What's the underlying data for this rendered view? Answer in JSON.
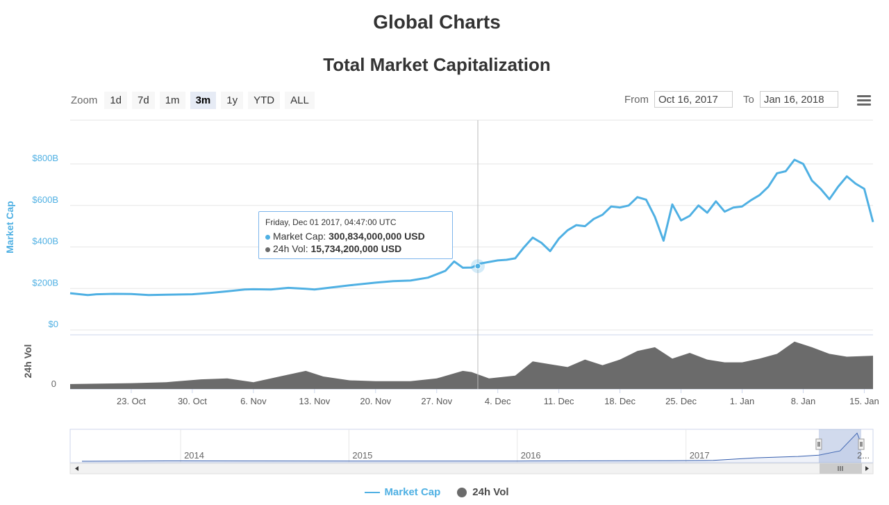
{
  "page": {
    "title": "Global Charts"
  },
  "toolbar": {
    "zoom_label": "Zoom",
    "zoom_buttons": [
      "1d",
      "7d",
      "1m",
      "3m",
      "1y",
      "YTD",
      "ALL"
    ],
    "active_zoom": "3m",
    "from_label": "From",
    "from_value": "Oct 16, 2017",
    "to_label": "To",
    "to_value": "Jan 16, 2018",
    "menu_icon": "hamburger-menu-icon"
  },
  "tooltip": {
    "date": "Friday, Dec 01 2017, 04:47:00 UTC",
    "market_cap_label": "Market Cap:",
    "market_cap_value": "300,834,000,000 USD",
    "vol_label": "24h Vol:",
    "vol_value": "15,734,200,000 USD"
  },
  "colors": {
    "market_cap": "#4fb0e3",
    "volume": "#6b6b6b",
    "navigator": "#335cad",
    "text": "#333333"
  },
  "chart_data": {
    "type": "line",
    "title": "Total Market Capitalization",
    "xlabel": "",
    "ylabel": "Market Cap",
    "ylim": [
      0,
      1000
    ],
    "y_ticks": [
      0,
      200,
      400,
      600,
      800
    ],
    "y_tick_labels": [
      "$0",
      "$200B",
      "$400B",
      "$600B",
      "$800B"
    ],
    "x_range": [
      "2017-10-16",
      "2018-01-16"
    ],
    "x_ticks": [
      {
        "date": "2017-10-23",
        "label": "23. Oct"
      },
      {
        "date": "2017-10-30",
        "label": "30. Oct"
      },
      {
        "date": "2017-11-06",
        "label": "6. Nov"
      },
      {
        "date": "2017-11-13",
        "label": "13. Nov"
      },
      {
        "date": "2017-11-20",
        "label": "20. Nov"
      },
      {
        "date": "2017-11-27",
        "label": "27. Nov"
      },
      {
        "date": "2017-12-04",
        "label": "4. Dec"
      },
      {
        "date": "2017-12-11",
        "label": "11. Dec"
      },
      {
        "date": "2017-12-18",
        "label": "18. Dec"
      },
      {
        "date": "2017-12-25",
        "label": "25. Dec"
      },
      {
        "date": "2018-01-01",
        "label": "1. Jan"
      },
      {
        "date": "2018-01-08",
        "label": "8. Jan"
      },
      {
        "date": "2018-01-15",
        "label": "15. Jan"
      }
    ],
    "crosshair_date": "2017-12-01",
    "series": [
      {
        "name": "Market Cap",
        "unit": "B USD",
        "points": [
          [
            "2017-10-16",
            177
          ],
          [
            "2017-10-18",
            168
          ],
          [
            "2017-10-19",
            172
          ],
          [
            "2017-10-21",
            174
          ],
          [
            "2017-10-23",
            173
          ],
          [
            "2017-10-25",
            168
          ],
          [
            "2017-10-27",
            170
          ],
          [
            "2017-10-30",
            172
          ],
          [
            "2017-11-01",
            178
          ],
          [
            "2017-11-03",
            186
          ],
          [
            "2017-11-05",
            195
          ],
          [
            "2017-11-06",
            196
          ],
          [
            "2017-11-08",
            195
          ],
          [
            "2017-11-10",
            203
          ],
          [
            "2017-11-12",
            198
          ],
          [
            "2017-11-13",
            195
          ],
          [
            "2017-11-15",
            205
          ],
          [
            "2017-11-17",
            215
          ],
          [
            "2017-11-20",
            228
          ],
          [
            "2017-11-22",
            235
          ],
          [
            "2017-11-24",
            238
          ],
          [
            "2017-11-26",
            252
          ],
          [
            "2017-11-28",
            285
          ],
          [
            "2017-11-29",
            330
          ],
          [
            "2017-11-30",
            300
          ],
          [
            "2017-12-01",
            301
          ],
          [
            "2017-12-02",
            320
          ],
          [
            "2017-12-04",
            335
          ],
          [
            "2017-12-05",
            338
          ],
          [
            "2017-12-06",
            345
          ],
          [
            "2017-12-07",
            398
          ],
          [
            "2017-12-08",
            445
          ],
          [
            "2017-12-09",
            420
          ],
          [
            "2017-12-10",
            380
          ],
          [
            "2017-12-11",
            440
          ],
          [
            "2017-12-12",
            480
          ],
          [
            "2017-12-13",
            505
          ],
          [
            "2017-12-14",
            500
          ],
          [
            "2017-12-15",
            535
          ],
          [
            "2017-12-16",
            555
          ],
          [
            "2017-12-17",
            595
          ],
          [
            "2017-12-18",
            590
          ],
          [
            "2017-12-19",
            600
          ],
          [
            "2017-12-20",
            640
          ],
          [
            "2017-12-21",
            628
          ],
          [
            "2017-12-22",
            545
          ],
          [
            "2017-12-23",
            430
          ],
          [
            "2017-12-24",
            605
          ],
          [
            "2017-12-25",
            528
          ],
          [
            "2017-12-26",
            550
          ],
          [
            "2017-12-27",
            600
          ],
          [
            "2017-12-28",
            565
          ],
          [
            "2017-12-29",
            620
          ],
          [
            "2017-12-30",
            570
          ],
          [
            "2017-12-31",
            590
          ],
          [
            "2018-01-01",
            595
          ],
          [
            "2018-01-02",
            625
          ],
          [
            "2018-01-03",
            650
          ],
          [
            "2018-01-04",
            690
          ],
          [
            "2018-01-05",
            755
          ],
          [
            "2018-01-06",
            765
          ],
          [
            "2018-01-07",
            820
          ],
          [
            "2018-01-08",
            800
          ],
          [
            "2018-01-09",
            720
          ],
          [
            "2018-01-10",
            680
          ],
          [
            "2018-01-11",
            630
          ],
          [
            "2018-01-12",
            690
          ],
          [
            "2018-01-13",
            740
          ],
          [
            "2018-01-14",
            705
          ],
          [
            "2018-01-15",
            680
          ],
          [
            "2018-01-16",
            520
          ]
        ]
      },
      {
        "name": "24h Vol",
        "unit": "B USD",
        "points": [
          [
            "2017-10-16",
            3
          ],
          [
            "2017-10-23",
            4
          ],
          [
            "2017-10-27",
            5
          ],
          [
            "2017-10-31",
            8
          ],
          [
            "2017-11-03",
            9
          ],
          [
            "2017-11-06",
            5
          ],
          [
            "2017-11-09",
            11
          ],
          [
            "2017-11-12",
            17
          ],
          [
            "2017-11-14",
            11
          ],
          [
            "2017-11-17",
            7
          ],
          [
            "2017-11-20",
            6
          ],
          [
            "2017-11-24",
            6
          ],
          [
            "2017-11-27",
            9
          ],
          [
            "2017-11-30",
            17
          ],
          [
            "2017-12-01",
            15.7
          ],
          [
            "2017-12-03",
            9
          ],
          [
            "2017-12-06",
            12
          ],
          [
            "2017-12-08",
            27
          ],
          [
            "2017-12-10",
            24
          ],
          [
            "2017-12-12",
            21
          ],
          [
            "2017-12-14",
            29
          ],
          [
            "2017-12-16",
            23
          ],
          [
            "2017-12-18",
            29
          ],
          [
            "2017-12-20",
            38
          ],
          [
            "2017-12-22",
            42
          ],
          [
            "2017-12-24",
            30
          ],
          [
            "2017-12-26",
            36
          ],
          [
            "2017-12-28",
            29
          ],
          [
            "2017-12-30",
            26
          ],
          [
            "2018-01-01",
            26
          ],
          [
            "2018-01-03",
            30
          ],
          [
            "2018-01-05",
            35
          ],
          [
            "2018-01-07",
            48
          ],
          [
            "2018-01-09",
            42
          ],
          [
            "2018-01-11",
            35
          ],
          [
            "2018-01-13",
            32
          ],
          [
            "2018-01-16",
            33
          ]
        ]
      }
    ],
    "navigator": {
      "labels": [
        "2014",
        "2015",
        "2016",
        "2017",
        "2..."
      ],
      "series": [
        [
          "2013-06-01",
          1
        ],
        [
          "2013-12-01",
          10
        ],
        [
          "2014-06-01",
          8
        ],
        [
          "2015-01-01",
          5
        ],
        [
          "2016-01-01",
          7
        ],
        [
          "2016-12-01",
          17
        ],
        [
          "2017-03-01",
          25
        ],
        [
          "2017-06-01",
          100
        ],
        [
          "2017-09-01",
          140
        ],
        [
          "2017-10-16",
          177
        ],
        [
          "2017-12-01",
          301
        ],
        [
          "2018-01-07",
          820
        ],
        [
          "2018-01-16",
          520
        ]
      ]
    },
    "legend": {
      "position": "bottom-center",
      "items": [
        "Market Cap",
        "24h Vol"
      ]
    }
  }
}
